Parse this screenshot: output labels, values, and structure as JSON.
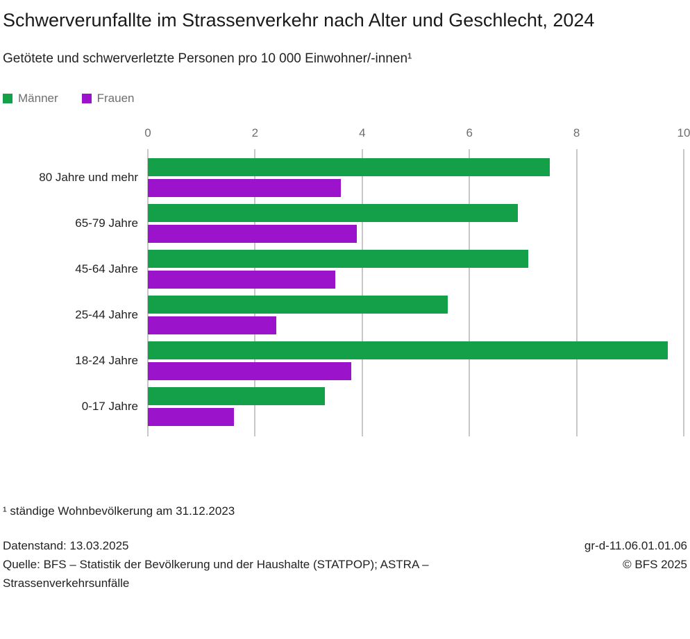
{
  "header": {
    "title": "Schwerverunfallte im Strassenverkehr nach Alter und Geschlecht, 2024",
    "subtitle": "Getötete und schwerverletzte Personen pro 10 000 Einwohner/-innen¹"
  },
  "chart_data": {
    "type": "bar",
    "orientation": "horizontal",
    "title": "Schwerverunfallte im Strassenverkehr nach Alter und Geschlecht, 2024",
    "subtitle": "Getötete und schwerverletzte Personen pro 10 000 Einwohner/-innen¹",
    "categories": [
      "80 Jahre und mehr",
      "65-79 Jahre",
      "45-64 Jahre",
      "25-44 Jahre",
      "18-24 Jahre",
      "0-17 Jahre"
    ],
    "series": [
      {
        "name": "Männer",
        "color": "#13a049",
        "values": [
          7.5,
          6.9,
          7.1,
          5.6,
          9.7,
          3.3
        ]
      },
      {
        "name": "Frauen",
        "color": "#9b14cc",
        "values": [
          3.6,
          3.9,
          3.5,
          2.4,
          3.8,
          1.6
        ]
      }
    ],
    "xlabel": "",
    "ylabel": "",
    "xlim": [
      0,
      10
    ],
    "xticks": [
      0,
      2,
      4,
      6,
      8,
      10
    ],
    "grid": "vertical",
    "legend_position": "top-left"
  },
  "footnote": "¹ ständige Wohnbevölkerung am 31.12.2023",
  "footer": {
    "datenstand": "Datenstand: 13.03.2025",
    "quelle": "Quelle: BFS – Statistik der Bevölkerung und der Haushalte (STATPOP); ASTRA – Strassenverkehrsunfälle",
    "code": "gr-d-11.06.01.01.06",
    "copyright": "© BFS 2025"
  }
}
